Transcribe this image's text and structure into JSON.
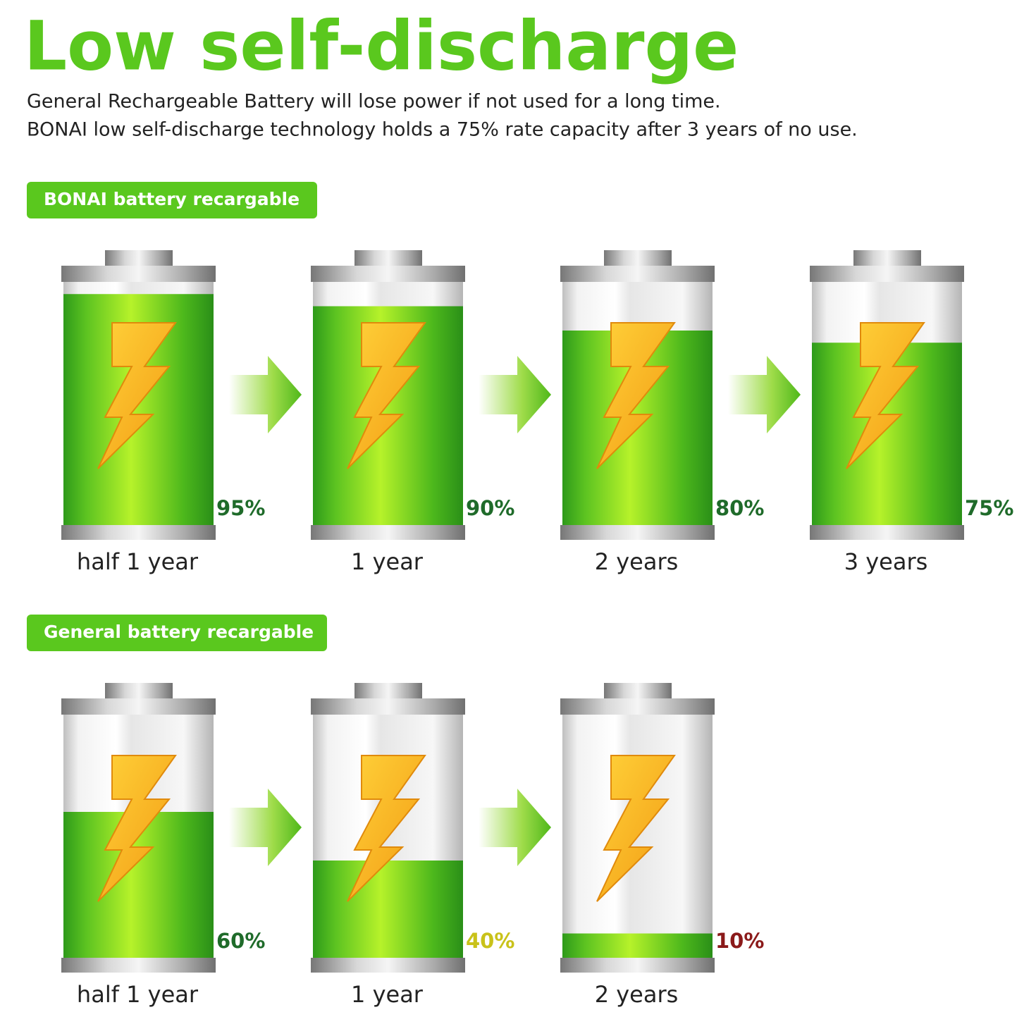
{
  "header": {
    "title": "Low self-discharge",
    "lines": [
      "General Rechargeable Battery will lose power if not used for a long time.",
      "BONAI low self-discharge technology holds a 75% rate capacity after 3 years of no use."
    ]
  },
  "sections": [
    {
      "label": "BONAI battery  recargable",
      "batteries": [
        {
          "period": "half 1 year",
          "value": 95,
          "value_label": "95%",
          "label_color": "#1f6b2a"
        },
        {
          "period": "1 year",
          "value": 90,
          "value_label": "90%",
          "label_color": "#1f6b2a"
        },
        {
          "period": "2 years",
          "value": 80,
          "value_label": "80%",
          "label_color": "#1f6b2a"
        },
        {
          "period": "3 years",
          "value": 75,
          "value_label": "75%",
          "label_color": "#1f6b2a"
        }
      ]
    },
    {
      "label": "General battery recargable",
      "batteries": [
        {
          "period": "half 1 year",
          "value": 60,
          "value_label": "60%",
          "label_color": "#1f6b2a"
        },
        {
          "period": "1 year",
          "value": 40,
          "value_label": "40%",
          "label_color": "#c9c21a"
        },
        {
          "period": "2 years",
          "value": 10,
          "value_label": "10%",
          "label_color": "#8b1a1a"
        }
      ]
    }
  ]
}
